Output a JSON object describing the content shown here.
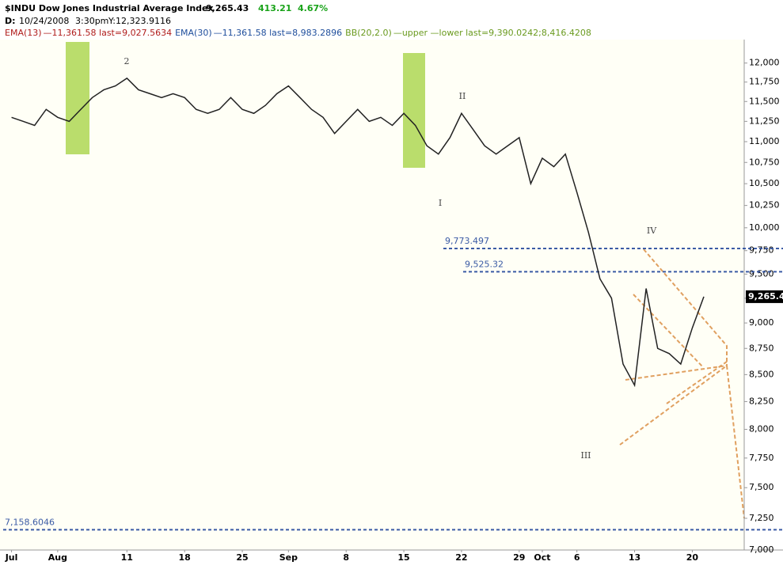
{
  "chart_data": {
    "type": "line",
    "title": "$INDU Dow Jones Industrial Average Index",
    "last": "9,265.43",
    "change": "413.21",
    "change_pct": "4.67%",
    "info": [
      "D:",
      "10/24/2008",
      "3:30pm",
      "Y:12,323.9116"
    ],
    "indicators": [
      {
        "name": "EMA(13)",
        "text": "—11,361.58 last=9,027.5634",
        "color": "#b01c1c"
      },
      {
        "name": "EMA(30)",
        "text": "—11,361.58 last=8,983.2896",
        "color": "#1f4e9c"
      },
      {
        "name": "BB(20,2.0)",
        "text": "—upper —lower last=9,390.0242;8,416.4208",
        "color": "#6a9a1f"
      }
    ],
    "annotations": [
      "2",
      "I",
      "II",
      "III",
      "IV"
    ],
    "log_scale": true,
    "x": [
      0,
      1,
      2,
      3,
      4,
      5,
      6,
      7,
      8,
      9,
      10,
      11,
      12,
      13,
      14,
      15,
      16,
      17,
      18,
      19,
      20,
      21,
      22,
      23,
      24,
      25,
      26,
      27,
      28,
      29,
      30,
      31,
      32,
      33,
      34,
      35,
      36,
      37,
      38,
      39,
      40,
      41,
      42,
      43,
      44,
      45,
      46,
      47,
      48,
      49,
      50,
      51,
      52,
      53,
      54,
      55,
      56,
      57,
      58,
      59,
      60
    ],
    "series": [
      {
        "name": "$INDU",
        "color": "#222222",
        "values": [
          11300,
          11250,
          11200,
          11400,
          11300,
          11250,
          11400,
          11550,
          11650,
          11700,
          11800,
          11650,
          11600,
          11550,
          11600,
          11550,
          11400,
          11350,
          11400,
          11550,
          11400,
          11350,
          11450,
          11600,
          11700,
          11550,
          11400,
          11300,
          11100,
          11250,
          11400,
          11250,
          11300,
          11200,
          11350,
          11200,
          10950,
          10850,
          11050,
          11350,
          11150,
          10950,
          10850,
          10950,
          11050,
          10500,
          10800,
          10700,
          10850,
          10400,
          9950,
          9450,
          9250,
          8600,
          8400,
          9350,
          8750,
          8700,
          8600,
          8950,
          9265.43
        ]
      }
    ],
    "levels": [
      {
        "value": 9773.497,
        "label": "9,773.497"
      },
      {
        "value": 9525.32,
        "label": "9,525.32"
      },
      {
        "value": 7158.6046,
        "label": "7,158.6046"
      }
    ],
    "xlim": [
      -1,
      63.5
    ],
    "xticks": [
      {
        "value": 0,
        "label": "Jul"
      },
      {
        "value": 4,
        "label": "Aug"
      },
      {
        "value": 10,
        "label": "11"
      },
      {
        "value": 15,
        "label": "18"
      },
      {
        "value": 20,
        "label": "25"
      },
      {
        "value": 24,
        "label": "Sep"
      },
      {
        "value": 29,
        "label": "8"
      },
      {
        "value": 34,
        "label": "15"
      },
      {
        "value": 39,
        "label": "22"
      },
      {
        "value": 44,
        "label": "29"
      },
      {
        "value": 46,
        "label": "Oct"
      },
      {
        "value": 49,
        "label": "6"
      },
      {
        "value": 54,
        "label": "13"
      },
      {
        "value": 59,
        "label": "20"
      }
    ],
    "ylim": [
      7000,
      12316
    ],
    "yticks": [
      {
        "value": 7000,
        "label": "7,000"
      },
      {
        "value": 7250,
        "label": "7,250"
      },
      {
        "value": 7500,
        "label": "7,500"
      },
      {
        "value": 7750,
        "label": "7,750"
      },
      {
        "value": 8000,
        "label": "8,000"
      },
      {
        "value": 8250,
        "label": "8,250"
      },
      {
        "value": 8500,
        "label": "8,500"
      },
      {
        "value": 8750,
        "label": "8,750"
      },
      {
        "value": 9000,
        "label": "9,000"
      },
      {
        "value": 9250,
        "label": "9,250"
      },
      {
        "value": 9500,
        "label": "9,500"
      },
      {
        "value": 9750,
        "label": "9,750"
      },
      {
        "value": 10000,
        "label": "10,000"
      },
      {
        "value": 10250,
        "label": "10,250"
      },
      {
        "value": 10500,
        "label": "10,500"
      },
      {
        "value": 10750,
        "label": "10,750"
      },
      {
        "value": 11000,
        "label": "11,000"
      },
      {
        "value": 11250,
        "label": "11,250"
      },
      {
        "value": 11500,
        "label": "11,500"
      },
      {
        "value": 11750,
        "label": "11,750"
      },
      {
        "value": 12000,
        "label": "12,000"
      }
    ],
    "level_color": "#3b5ba5"
  }
}
